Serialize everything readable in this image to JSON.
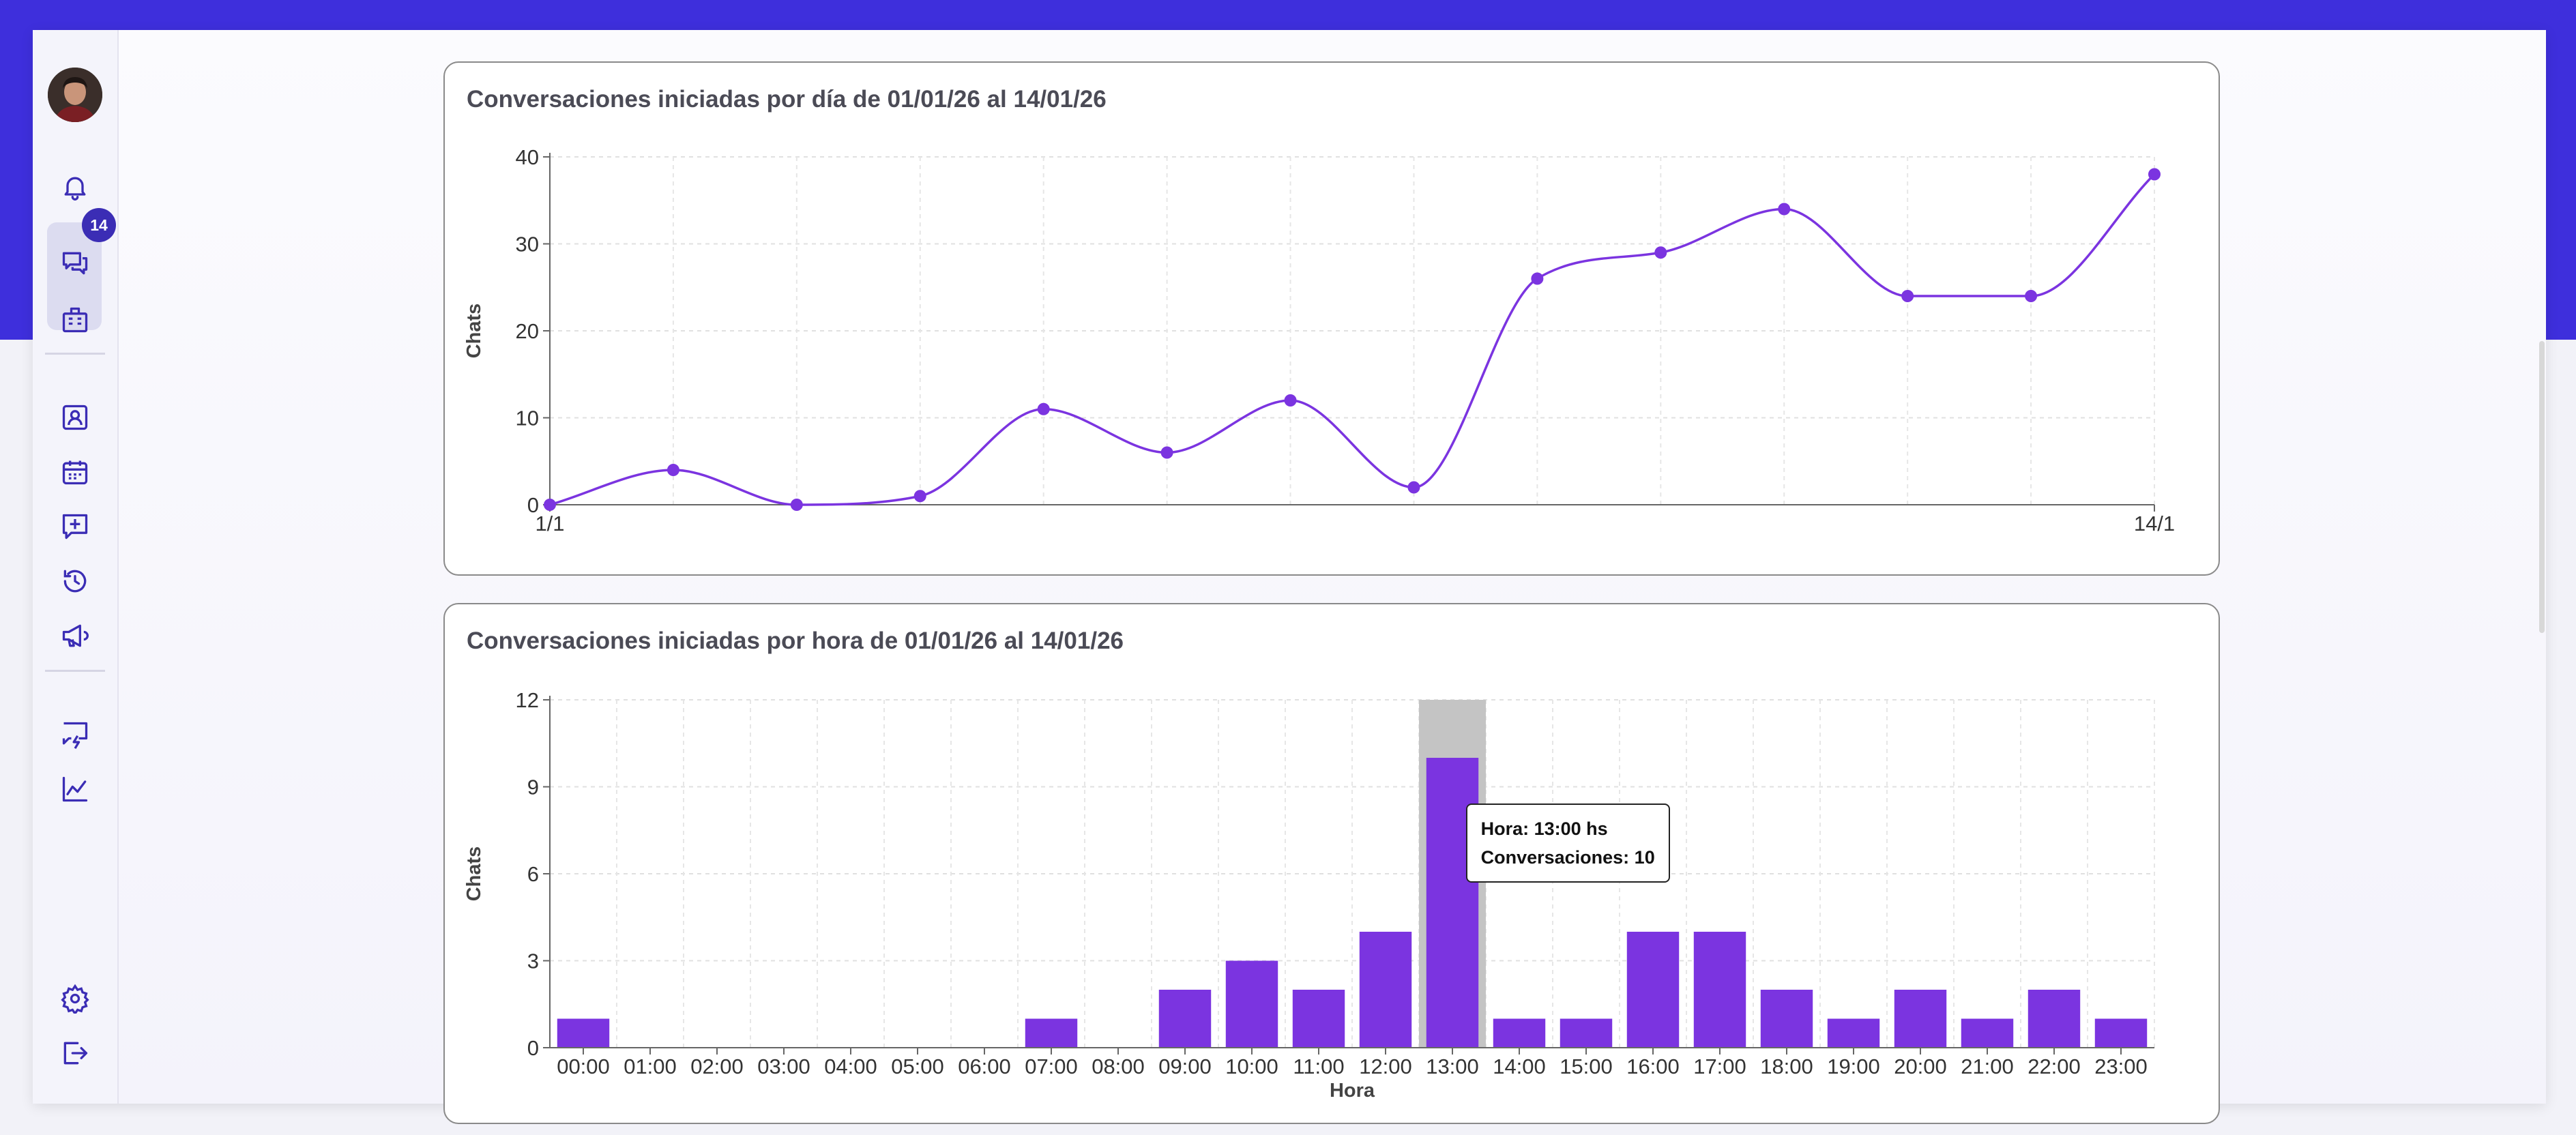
{
  "sidebar": {
    "badge": "14",
    "icons": [
      "bell-icon",
      "chat-bubbles-icon",
      "building-icon",
      "contact-card-icon",
      "calendar-icon",
      "add-message-icon",
      "history-icon",
      "megaphone-icon",
      "message-bolt-icon",
      "chart-line-icon",
      "gear-icon",
      "logout-icon"
    ]
  },
  "colors": {
    "accent": "#7b34e0",
    "header": "#3e2fdc",
    "highlight": "#c4c4c4"
  },
  "chart_data": [
    {
      "type": "line",
      "title": "Conversaciones iniciadas por día de 01/01/26 al 14/01/26",
      "xlabel": "",
      "ylabel": "Chats",
      "x": [
        1,
        2,
        3,
        4,
        5,
        6,
        7,
        8,
        9,
        10,
        11,
        12,
        13,
        14
      ],
      "x_tick_labels": [
        "1/1",
        "14/1"
      ],
      "series": [
        {
          "values": [
            0,
            4,
            0,
            1,
            11,
            6,
            12,
            2,
            26,
            29,
            34,
            24,
            24,
            38
          ]
        }
      ],
      "ylim": [
        0,
        40
      ],
      "yticks": [
        "0",
        "10",
        "20",
        "30",
        "40"
      ],
      "grid": true
    },
    {
      "type": "bar",
      "title": "Conversaciones iniciadas por hora de 01/01/26 al 14/01/26",
      "xlabel": "Hora",
      "ylabel": "Chats",
      "categories": [
        "00:00",
        "01:00",
        "02:00",
        "03:00",
        "04:00",
        "05:00",
        "06:00",
        "07:00",
        "08:00",
        "09:00",
        "10:00",
        "11:00",
        "12:00",
        "13:00",
        "14:00",
        "15:00",
        "16:00",
        "17:00",
        "18:00",
        "19:00",
        "20:00",
        "21:00",
        "22:00",
        "23:00"
      ],
      "values": [
        1,
        0,
        0,
        0,
        0,
        0,
        0,
        1,
        0,
        2,
        3,
        2,
        4,
        10,
        1,
        1,
        4,
        4,
        2,
        1,
        2,
        1,
        2,
        1
      ],
      "ylim": [
        0,
        12
      ],
      "yticks": [
        "0",
        "3",
        "6",
        "9",
        "12"
      ],
      "grid": true,
      "highlighted_category": "13:00",
      "tooltip": {
        "line1": "Hora: 13:00 hs",
        "line2": "Conversaciones: 10"
      }
    }
  ]
}
